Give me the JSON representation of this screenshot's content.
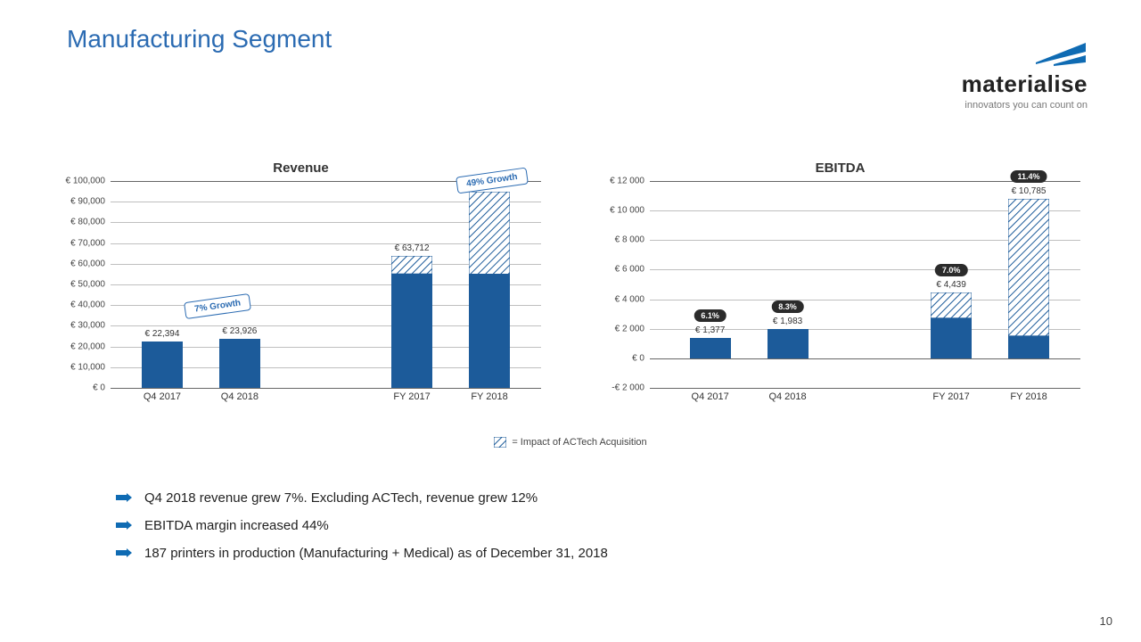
{
  "title": "Manufacturing Segment",
  "title_color": "#2b6bb2",
  "logo": {
    "word": "materialise",
    "tagline": "innovators you can count on",
    "mark_color": "#0f6bb3"
  },
  "legend": {
    "label": "= Impact of ACTech Acquisition",
    "hatch_stroke": "#1c5b9a"
  },
  "page_number": "10",
  "colors": {
    "bar_solid": "#1c5b9a",
    "hatch_stroke": "#1c5b9a",
    "grid": "#bfbfbf",
    "axis": "#666666",
    "pct_bg": "#2b2b2b"
  },
  "charts": [
    {
      "title": "Revenue",
      "ymin": 0,
      "ymax": 100000,
      "ystep": 10000,
      "yprefix": "€ ",
      "ythousands": true,
      "categories": [
        "Q4 2017",
        "Q4 2018",
        "FY 2017",
        "FY 2018"
      ],
      "positions": [
        0.12,
        0.3,
        0.7,
        0.88
      ],
      "gap_between": [
        1,
        2
      ],
      "bars": [
        {
          "solid": 22394,
          "hatch": 0,
          "label": "€ 22,394",
          "pct": null
        },
        {
          "solid": 23926,
          "hatch": 0,
          "label": "€ 23,926",
          "pct": null
        },
        {
          "solid": 55000,
          "hatch": 8712,
          "label": "€ 63,712",
          "pct": null
        },
        {
          "solid": 55000,
          "hatch": 39956,
          "label": "€ 94,956",
          "pct": null
        }
      ],
      "growth_badges": [
        {
          "text": "7% Growth",
          "left_pct": 0.21,
          "y_val": 40000,
          "rotate": -8
        },
        {
          "text": "49% Growth",
          "left_pct": 0.76,
          "y_val": 101000,
          "rotate": -8
        }
      ]
    },
    {
      "title": "EBITDA",
      "ymin": -2000,
      "ymax": 12000,
      "ystep": 2000,
      "yprefix": "€ ",
      "ythousands": false,
      "categories": [
        "Q4 2017",
        "Q4 2018",
        "FY 2017",
        "FY 2018"
      ],
      "positions": [
        0.14,
        0.32,
        0.7,
        0.88
      ],
      "gap_between": [
        1,
        2
      ],
      "bars": [
        {
          "solid": 1377,
          "hatch": 0,
          "label": "€ 1,377",
          "pct": "6.1%"
        },
        {
          "solid": 1983,
          "hatch": 0,
          "label": "€ 1,983",
          "pct": "8.3%"
        },
        {
          "solid": 2700,
          "hatch": 1739,
          "label": "€ 4,439",
          "pct": "7.0%"
        },
        {
          "solid": 1500,
          "hatch": 9285,
          "label": "€ 10,785",
          "pct": "11.4%"
        }
      ],
      "growth_badges": []
    }
  ],
  "bullets": [
    "Q4 2018 revenue grew 7%. Excluding ACTech, revenue grew 12%",
    "EBITDA margin increased 44%",
    "187 printers in production (Manufacturing + Medical) as of December 31, 2018"
  ],
  "bullet_arrow_color": "#0f6bb3"
}
